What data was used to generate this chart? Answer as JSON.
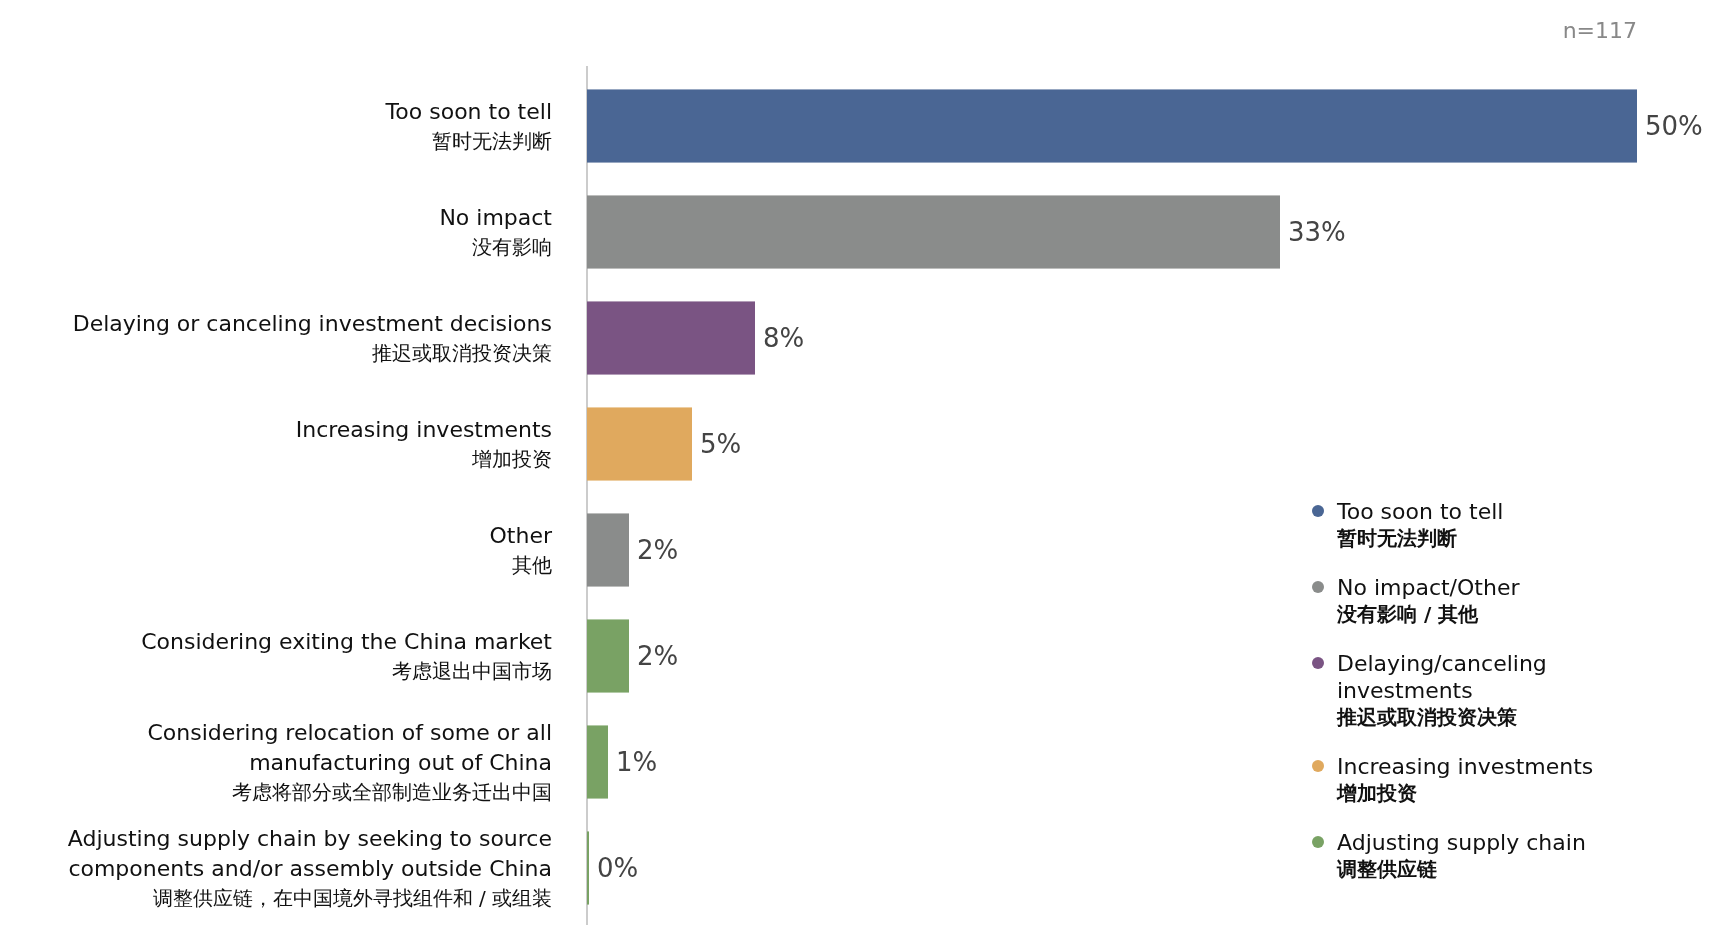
{
  "chart_data": {
    "type": "bar",
    "orientation": "horizontal",
    "tick_labels": "y",
    "legend": "bottom right",
    "xlim": [
      0,
      50
    ],
    "annotations": [
      "n=117"
    ],
    "categories": [
      "Too soon to tell\n暂时无法判断",
      "No impact\n没有影响",
      "Delaying or canceling investment decisions\n推迟或取消投资决策",
      "Increasing investments\n增加投资",
      "Other\n其他",
      "Considering exiting the China market\n考虑退出中国市场",
      "Considering relocation of some or all\nmanufacturing out of China\n考虑将部分或全部制造业务迁出中国",
      "Adjusting supply chain by seeking to source\ncomponents and/or assembly outside China\n调整供应链，在中国境外寻找组件和 / 或组装"
    ],
    "series": [
      {
        "name": "Too soon to tell\n暂时无法判断",
        "color": "#4a6694",
        "values": [
          50,
          null,
          null,
          null,
          null,
          null,
          null,
          null
        ],
        "value_labels": [
          "50%",
          null,
          null,
          null,
          null,
          null,
          null,
          null
        ]
      },
      {
        "name": "No impact/Other\n没有影响 / 其他",
        "color": "#8a8c8b",
        "values": [
          null,
          33,
          null,
          null,
          2,
          null,
          null,
          null
        ],
        "value_labels": [
          null,
          "33%",
          null,
          null,
          "2%",
          null,
          null,
          null
        ]
      },
      {
        "name": "Delaying/canceling\ninvestments\n推迟或取消投资决策",
        "color": "#7a5483",
        "values": [
          null,
          null,
          8,
          null,
          null,
          null,
          null,
          null
        ],
        "value_labels": [
          null,
          null,
          "8%",
          null,
          null,
          null,
          null,
          null
        ]
      },
      {
        "name": "Increasing investments\n增加投资",
        "color": "#e0a95e",
        "values": [
          null,
          null,
          null,
          5,
          null,
          null,
          null,
          null
        ],
        "value_labels": [
          null,
          null,
          null,
          "5%",
          null,
          null,
          null,
          null
        ]
      },
      {
        "name": "Adjusting supply chain\n调整供应链",
        "color": "#79a264",
        "values": [
          null,
          null,
          null,
          null,
          null,
          2,
          1,
          0
        ],
        "value_labels": [
          null,
          null,
          null,
          null,
          null,
          "2%",
          "1%",
          "0%"
        ]
      }
    ]
  }
}
